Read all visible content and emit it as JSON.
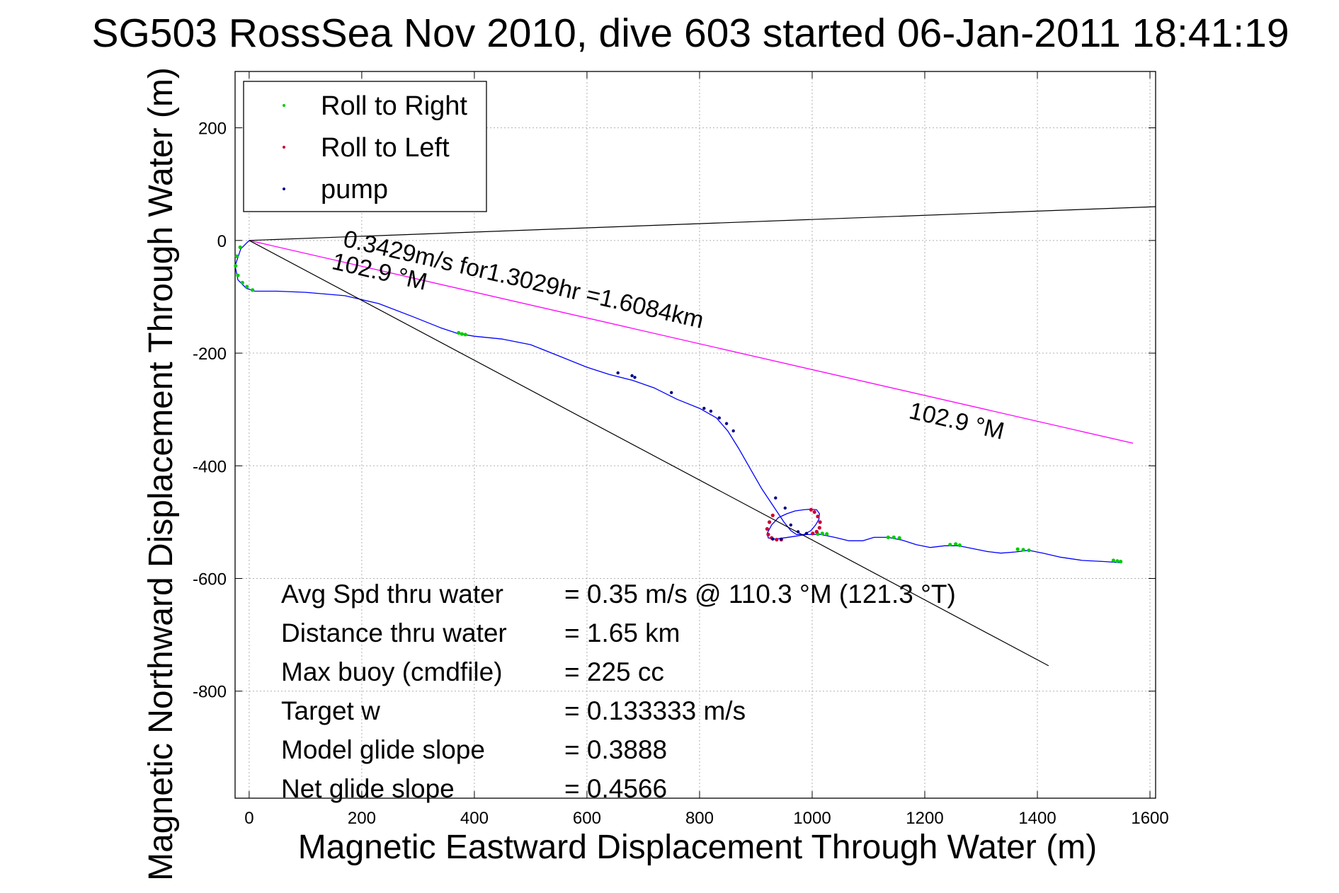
{
  "chart_data": {
    "type": "line",
    "title": "SG503 RossSea Nov 2010, dive 603 started 06-Jan-2011 18:41:19",
    "xlabel": "Magnetic Eastward Displacement Through Water (m)",
    "ylabel": "Magnetic Northward Displacement Through Water (m)",
    "xlim": [
      -25,
      1610
    ],
    "ylim": [
      -990,
      300
    ],
    "x_ticks": [
      0,
      200,
      400,
      600,
      800,
      1000,
      1200,
      1400,
      1600
    ],
    "y_ticks": [
      200,
      0,
      -200,
      -400,
      -600,
      -800
    ],
    "x_tick_labels": [
      "0",
      "200",
      "400",
      "600",
      "800",
      "1000",
      "1200",
      "1400",
      "1600"
    ],
    "y_tick_labels": [
      "200",
      "0",
      "-200",
      "-400",
      "-600",
      "-800"
    ],
    "grid": true,
    "legend_position": "top-left",
    "legend": [
      {
        "label": "Roll to Right",
        "color": "#00cc00"
      },
      {
        "label": "Roll to Left",
        "color": "#cc0033"
      },
      {
        "label": "pump",
        "color": "#000080"
      }
    ],
    "series": [
      {
        "color": "#0000ff",
        "x": [
          0,
          -15,
          -25,
          -20,
          -5,
          10,
          50,
          100,
          170,
          230,
          290,
          340,
          370,
          400,
          450,
          500,
          550,
          600,
          640,
          680,
          720,
          760,
          800,
          830,
          850,
          870,
          890,
          910,
          930,
          950,
          962,
          972,
          985,
          998,
          1006,
          1012,
          1013,
          1008,
          998,
          985,
          970,
          955,
          940,
          928,
          920,
          922,
          935,
          950,
          970,
          990,
          1015,
          1040,
          1065,
          1090,
          1110,
          1135,
          1160,
          1185,
          1210,
          1235,
          1260,
          1285,
          1310,
          1335,
          1360,
          1385,
          1410,
          1440,
          1480,
          1520,
          1548
        ],
        "y": [
          0,
          -15,
          -45,
          -70,
          -85,
          -90,
          -90,
          -92,
          -98,
          -112,
          -135,
          -155,
          -165,
          -170,
          -175,
          -185,
          -205,
          -225,
          -238,
          -248,
          -262,
          -282,
          -298,
          -315,
          -338,
          -370,
          -405,
          -440,
          -470,
          -500,
          -515,
          -522,
          -522,
          -515,
          -505,
          -495,
          -485,
          -478,
          -477,
          -478,
          -480,
          -485,
          -492,
          -505,
          -520,
          -528,
          -530,
          -528,
          -525,
          -522,
          -522,
          -527,
          -533,
          -533,
          -527,
          -527,
          -532,
          -540,
          -545,
          -542,
          -542,
          -547,
          -552,
          -555,
          -553,
          -550,
          -555,
          -562,
          -568,
          -570,
          -572
        ]
      },
      {
        "color": "#ff00ff",
        "x": [
          0,
          1570
        ],
        "y": [
          0,
          -360
        ]
      },
      {
        "color": "#000000",
        "x": [
          0,
          1420
        ],
        "y": [
          0,
          -755
        ]
      },
      {
        "color": "#000000",
        "x": [
          0,
          1610
        ],
        "y": [
          0,
          60
        ]
      }
    ],
    "roll_right_points": {
      "x": [
        -16,
        -22,
        -24,
        -20,
        -12,
        -4,
        6,
        372,
        378,
        384,
        1010,
        1018,
        1026,
        1135,
        1145,
        1155,
        1245,
        1255,
        1262,
        1365,
        1375,
        1385,
        1535,
        1542,
        1548
      ],
      "y": [
        -12,
        -28,
        -45,
        -62,
        -75,
        -82,
        -88,
        -164,
        -166,
        -167,
        -521,
        -520,
        -521,
        -527,
        -527,
        -528,
        -540,
        -539,
        -541,
        -548,
        -549,
        -550,
        -568,
        -569,
        -570
      ]
    },
    "roll_left_points": {
      "x": [
        930,
        924,
        920,
        922,
        928,
        937,
        945,
        998,
        1004,
        1010,
        1014,
        1013,
        1008,
        1001
      ],
      "y": [
        -488,
        -500,
        -512,
        -522,
        -528,
        -531,
        -531,
        -478,
        -482,
        -490,
        -500,
        -510,
        -517,
        -520
      ]
    },
    "pump_points": {
      "x": [
        655,
        680,
        685,
        750,
        808,
        820,
        835,
        848,
        860,
        935,
        952,
        962,
        975,
        990,
        930,
        945
      ],
      "y": [
        -235,
        -240,
        -243,
        -270,
        -298,
        -303,
        -315,
        -325,
        -338,
        -457,
        -475,
        -505,
        -517,
        -520,
        -530,
        -530
      ]
    },
    "annotations": [
      {
        "text": "0.3429m/s for1.3029hr =1.6084km",
        "x": 165,
        "y": -10,
        "angle": 12.9
      },
      {
        "text": "102.9 °M",
        "x": 145,
        "y": -50,
        "angle": 12.9
      },
      {
        "text": "102.9 °M",
        "x": 1170,
        "y": -315,
        "angle": 12.9
      }
    ],
    "stats": [
      {
        "label": "Avg Spd thru water",
        "value": "=  0.35 m/s @ 110.3 °M (121.3 °T)"
      },
      {
        "label": "Distance thru water",
        "value": "=  1.65 km"
      },
      {
        "label": "Max buoy (cmdfile)",
        "value": "= 225 cc"
      },
      {
        "label": "Target w",
        "value": "= 0.133333 m/s"
      },
      {
        "label": "Model glide slope",
        "value": "= 0.3888"
      },
      {
        "label": "Net glide slope",
        "value": "= 0.4566"
      }
    ]
  }
}
